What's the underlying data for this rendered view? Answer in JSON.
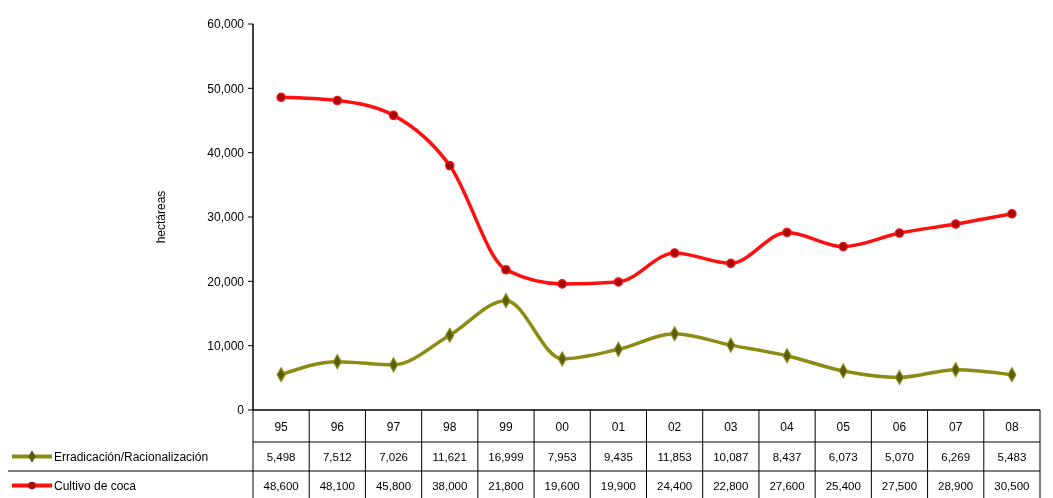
{
  "chart_data": {
    "type": "line",
    "ylabel": "hectáreas",
    "categories": [
      "95",
      "96",
      "97",
      "98",
      "99",
      "00",
      "01",
      "02",
      "03",
      "04",
      "05",
      "06",
      "07",
      "08"
    ],
    "series": [
      {
        "name": "Erradicación/Racionalización",
        "color": "#8c8c14",
        "marker": "diamond",
        "values": [
          5498,
          7512,
          7026,
          11621,
          16999,
          7953,
          9435,
          11853,
          10087,
          8437,
          6073,
          5070,
          6269,
          5483
        ],
        "value_labels": [
          "5,498",
          "7,512",
          "7,026",
          "11,621",
          "16,999",
          "7,953",
          "9,435",
          "11,853",
          "10,087",
          "8,437",
          "6,073",
          "5,070",
          "6,269",
          "5,483"
        ]
      },
      {
        "name": "Cultivo de coca",
        "color": "#ff1010",
        "marker": "circle",
        "values": [
          48600,
          48100,
          45800,
          38000,
          21800,
          19600,
          19900,
          24400,
          22800,
          27600,
          25400,
          27500,
          28900,
          30500
        ],
        "value_labels": [
          "48,600",
          "48,100",
          "45,800",
          "38,000",
          "21,800",
          "19,600",
          "19,900",
          "24,400",
          "22,800",
          "27,600",
          "25,400",
          "27,500",
          "28,900",
          "30,500"
        ]
      }
    ],
    "ylim": [
      0,
      60000
    ],
    "yticks": [
      {
        "value": 0,
        "label": "0"
      },
      {
        "value": 10000,
        "label": "10,000"
      },
      {
        "value": 20000,
        "label": "20,000"
      },
      {
        "value": 30000,
        "label": "30,000"
      },
      {
        "value": 40000,
        "label": "40,000"
      },
      {
        "value": 50000,
        "label": "50,000"
      },
      {
        "value": 60000,
        "label": "60,000"
      }
    ],
    "grid": false,
    "legend": "bottom left"
  }
}
